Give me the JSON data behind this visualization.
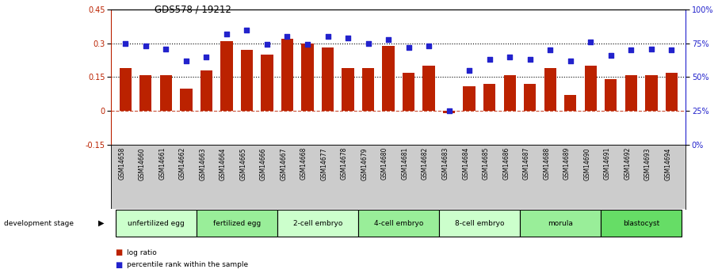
{
  "title": "GDS578 / 19212",
  "samples": [
    "GSM14658",
    "GSM14660",
    "GSM14661",
    "GSM14662",
    "GSM14663",
    "GSM14664",
    "GSM14665",
    "GSM14666",
    "GSM14667",
    "GSM14668",
    "GSM14677",
    "GSM14678",
    "GSM14679",
    "GSM14680",
    "GSM14681",
    "GSM14682",
    "GSM14683",
    "GSM14684",
    "GSM14685",
    "GSM14686",
    "GSM14687",
    "GSM14688",
    "GSM14689",
    "GSM14690",
    "GSM14691",
    "GSM14692",
    "GSM14693",
    "GSM14694"
  ],
  "log_ratio": [
    0.19,
    0.16,
    0.16,
    0.1,
    0.18,
    0.31,
    0.27,
    0.25,
    0.32,
    0.3,
    0.28,
    0.19,
    0.19,
    0.29,
    0.17,
    0.2,
    -0.01,
    0.11,
    0.12,
    0.16,
    0.12,
    0.19,
    0.07,
    0.2,
    0.14,
    0.16,
    0.16,
    0.17
  ],
  "percentile_rank": [
    75,
    73,
    71,
    62,
    65,
    82,
    85,
    74,
    80,
    74,
    80,
    79,
    75,
    78,
    72,
    73,
    25,
    55,
    63,
    65,
    63,
    70,
    62,
    76,
    66,
    70,
    71,
    70
  ],
  "bar_color": "#bb2200",
  "dot_color": "#2222cc",
  "ylim_left": [
    -0.15,
    0.45
  ],
  "ylim_right": [
    0,
    100
  ],
  "yticks_left": [
    -0.15,
    0.0,
    0.15,
    0.3,
    0.45
  ],
  "yticks_right": [
    0,
    25,
    50,
    75,
    100
  ],
  "hline_values": [
    0.15,
    0.3
  ],
  "zero_line": 0.0,
  "groups": [
    {
      "label": "unfertilized egg",
      "start": 0,
      "end": 4,
      "color": "#ccffcc"
    },
    {
      "label": "fertilized egg",
      "start": 4,
      "end": 8,
      "color": "#99ee99"
    },
    {
      "label": "2-cell embryo",
      "start": 8,
      "end": 12,
      "color": "#ccffcc"
    },
    {
      "label": "4-cell embryo",
      "start": 12,
      "end": 16,
      "color": "#99ee99"
    },
    {
      "label": "8-cell embryo",
      "start": 16,
      "end": 20,
      "color": "#ccffcc"
    },
    {
      "label": "morula",
      "start": 20,
      "end": 24,
      "color": "#99ee99"
    },
    {
      "label": "blastocyst",
      "start": 24,
      "end": 28,
      "color": "#66dd66"
    }
  ],
  "dev_stage_label": "development stage",
  "legend_log": "log ratio",
  "legend_pct": "percentile rank within the sample",
  "background_color": "#ffffff",
  "bar_width": 0.6,
  "ticker_bg": "#cccccc"
}
